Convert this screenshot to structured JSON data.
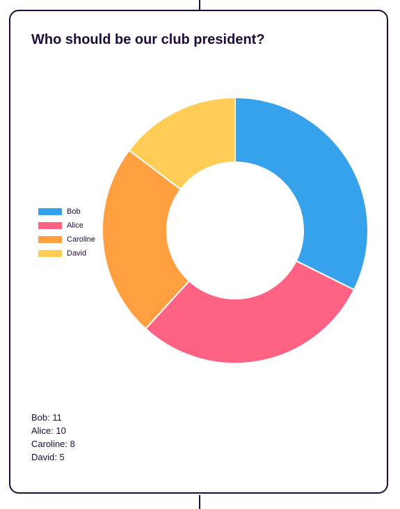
{
  "chart_data": {
    "type": "pie",
    "donut": true,
    "title": "Who should be our club president?",
    "categories": [
      "Bob",
      "Alice",
      "Caroline",
      "David"
    ],
    "values": [
      11,
      10,
      8,
      5
    ],
    "colors": [
      "#36a2eb",
      "#ff6384",
      "#ff9f40",
      "#ffcd56"
    ],
    "legend_position": "left"
  },
  "counts": [
    {
      "text": "Bob: 11"
    },
    {
      "text": "Alice: 10"
    },
    {
      "text": "Caroline: 8"
    },
    {
      "text": "David: 5"
    }
  ]
}
